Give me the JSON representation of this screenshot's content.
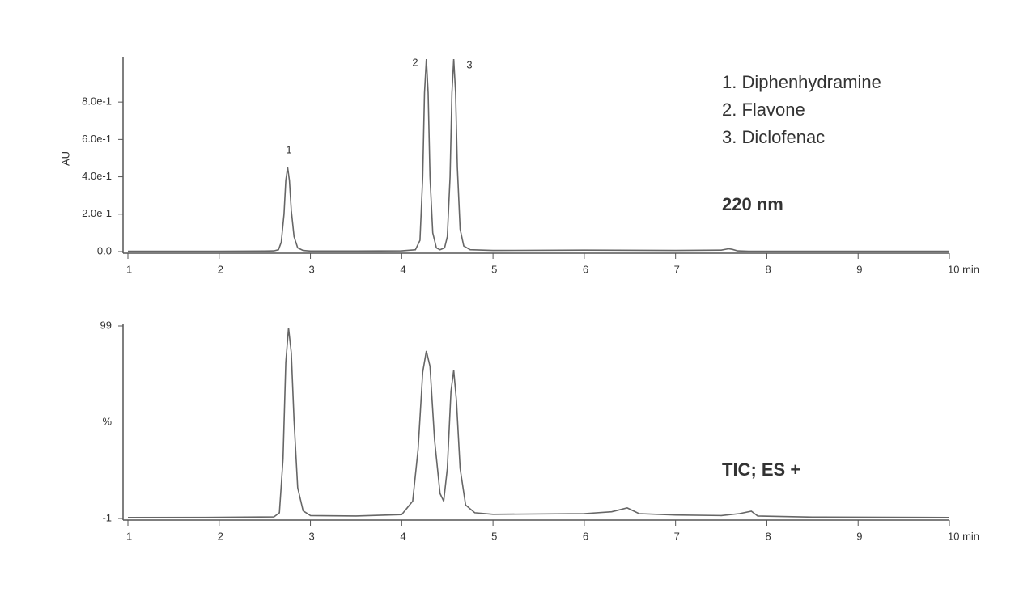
{
  "chart_data": [
    {
      "type": "line",
      "ylabel": "AU",
      "label": "220 nm",
      "legend_text": [
        "1. Diphenhydramine",
        "2. Flavone",
        "3. Diclofenac"
      ],
      "peak_labels": [
        "1",
        "2",
        "3"
      ],
      "color": "#666666",
      "xlim": [
        1,
        10
      ],
      "xticks": [
        1,
        2,
        3,
        4,
        5,
        6,
        7,
        8,
        9,
        {
          "value": 10,
          "label": "10 min"
        }
      ],
      "ylim": [
        0,
        1.03
      ],
      "yticks": [
        {
          "value": 0,
          "label": "0.0"
        },
        {
          "value": 0.2,
          "label": "2.0e-1"
        },
        {
          "value": 0.4,
          "label": "4.0e-1"
        },
        {
          "value": 0.6,
          "label": "6.0e-1"
        },
        {
          "value": 0.8,
          "label": "8.0e-1"
        }
      ],
      "x": [
        1,
        2,
        2.5,
        2.6,
        2.65,
        2.68,
        2.71,
        2.73,
        2.75,
        2.77,
        2.79,
        2.82,
        2.86,
        2.92,
        3.0,
        3.5,
        4.0,
        4.15,
        4.2,
        4.23,
        4.25,
        4.27,
        4.29,
        4.31,
        4.34,
        4.38,
        4.42,
        4.47,
        4.5,
        4.53,
        4.55,
        4.57,
        4.59,
        4.61,
        4.64,
        4.68,
        4.75,
        5.0,
        6.0,
        7.0,
        7.5,
        7.58,
        7.62,
        7.68,
        7.8,
        9.0,
        10
      ],
      "values": [
        0.002,
        0.002,
        0.003,
        0.004,
        0.01,
        0.05,
        0.2,
        0.38,
        0.45,
        0.38,
        0.22,
        0.08,
        0.02,
        0.006,
        0.003,
        0.003,
        0.004,
        0.01,
        0.06,
        0.4,
        0.85,
        1.03,
        0.85,
        0.4,
        0.1,
        0.02,
        0.01,
        0.02,
        0.08,
        0.4,
        0.85,
        1.03,
        0.85,
        0.45,
        0.12,
        0.03,
        0.01,
        0.006,
        0.008,
        0.006,
        0.008,
        0.015,
        0.012,
        0.004,
        0.002,
        0.002,
        0.002
      ]
    },
    {
      "type": "line",
      "ylabel": "%",
      "label": "TIC; ES +",
      "color": "#666666",
      "xlim": [
        1,
        10
      ],
      "xticks": [
        1,
        2,
        3,
        4,
        5,
        6,
        7,
        8,
        9,
        {
          "value": 10,
          "label": "10 min"
        }
      ],
      "ylim": [
        -1,
        99
      ],
      "yticks": [
        -1,
        99
      ],
      "x": [
        1,
        2,
        2.6,
        2.66,
        2.7,
        2.73,
        2.76,
        2.79,
        2.82,
        2.86,
        2.92,
        3.0,
        3.5,
        4.0,
        4.12,
        4.18,
        4.23,
        4.27,
        4.31,
        4.36,
        4.42,
        4.46,
        4.5,
        4.54,
        4.57,
        4.6,
        4.64,
        4.7,
        4.8,
        5.0,
        6.0,
        6.3,
        6.47,
        6.6,
        7.0,
        7.5,
        7.7,
        7.83,
        7.9,
        8.5,
        10
      ],
      "values": [
        -0.5,
        -0.4,
        -0.2,
        2,
        30,
        80,
        98,
        85,
        50,
        15,
        3,
        0.5,
        0.3,
        1,
        8,
        35,
        75,
        86,
        78,
        40,
        12,
        8,
        25,
        65,
        76,
        60,
        25,
        6,
        2,
        1.2,
        1.5,
        2.5,
        4.5,
        1.5,
        0.8,
        0.5,
        1.5,
        2.8,
        0.3,
        -0.3,
        -0.5
      ]
    }
  ]
}
